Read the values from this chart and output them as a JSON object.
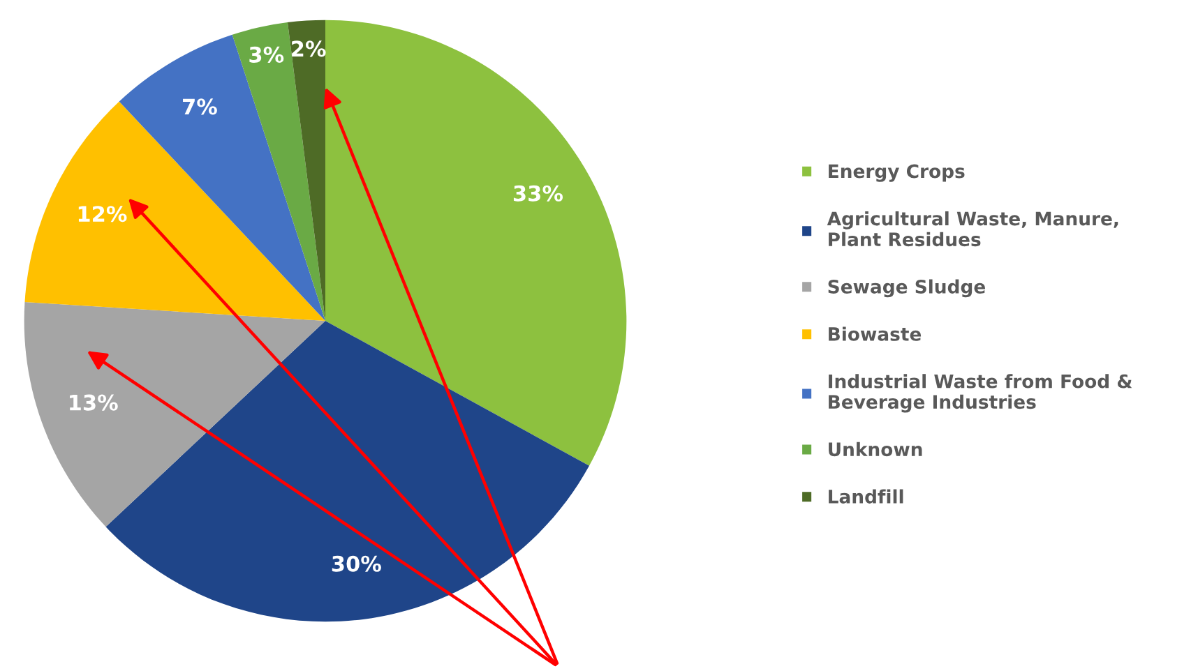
{
  "chart_data": {
    "type": "pie",
    "categories": [
      "Energy Crops",
      "Agricultural Waste, Manure, Plant Residues",
      "Sewage Sludge",
      "Biowaste",
      "Industrial Waste from Food & Beverage Industries",
      "Unknown",
      "Landfill"
    ],
    "values": [
      33,
      30,
      13,
      12,
      7,
      3,
      2
    ],
    "value_labels": [
      "33%",
      "30%",
      "13%",
      "12%",
      "7%",
      "3%",
      "2%"
    ],
    "colors": [
      "#8dc13f",
      "#1f4589",
      "#a5a5a5",
      "#ffc000",
      "#4472c4",
      "#6aaa45",
      "#4e6b26"
    ],
    "legend": "right"
  }
}
